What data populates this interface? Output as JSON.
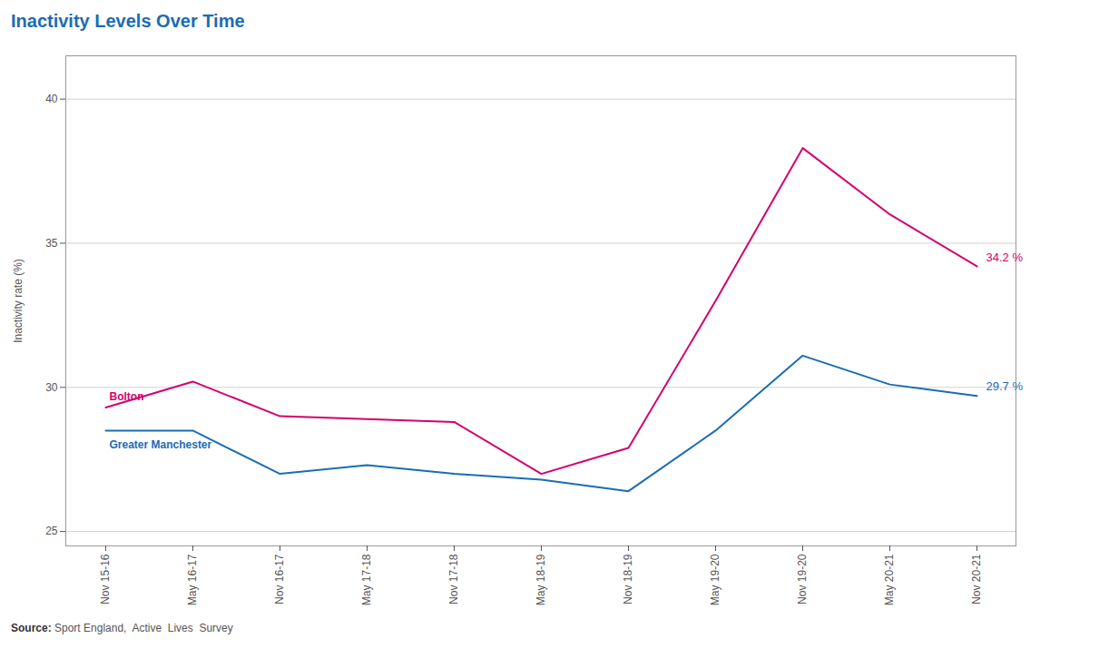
{
  "chart_data": {
    "type": "line",
    "title": "Inactivity Levels Over Time",
    "ylabel": "Inactivity rate (%)",
    "caption": "Source: Sport England,  Active  Lives  Survey",
    "categories": [
      "Nov 15-16",
      "May 16-17",
      "Nov 16-17",
      "May 17-18",
      "Nov 17-18",
      "May 18-19",
      "Nov 18-19",
      "May 19-20",
      "Nov 19-20",
      "May 20-21",
      "Nov 20-21"
    ],
    "series": [
      {
        "name": "Bolton",
        "color": "#d4006e",
        "values": [
          29.3,
          30.2,
          29.0,
          28.9,
          28.8,
          27.0,
          27.9,
          33.0,
          38.3,
          36.0,
          34.2
        ],
        "value_labels": [
          null,
          null,
          null,
          null,
          null,
          null,
          null,
          null,
          null,
          null,
          "34.2 %"
        ]
      },
      {
        "name": "Greater Manchester",
        "color": "#1a6cb5",
        "values": [
          28.5,
          28.5,
          27.0,
          27.3,
          27.0,
          26.8,
          26.4,
          28.5,
          31.1,
          30.1,
          29.7
        ],
        "value_labels": [
          null,
          null,
          null,
          null,
          null,
          null,
          null,
          null,
          null,
          null,
          "29.7 %"
        ]
      }
    ],
    "ylim": [
      24.5,
      41.5
    ],
    "yticks": [
      25,
      30,
      35,
      40
    ],
    "grid": true
  }
}
